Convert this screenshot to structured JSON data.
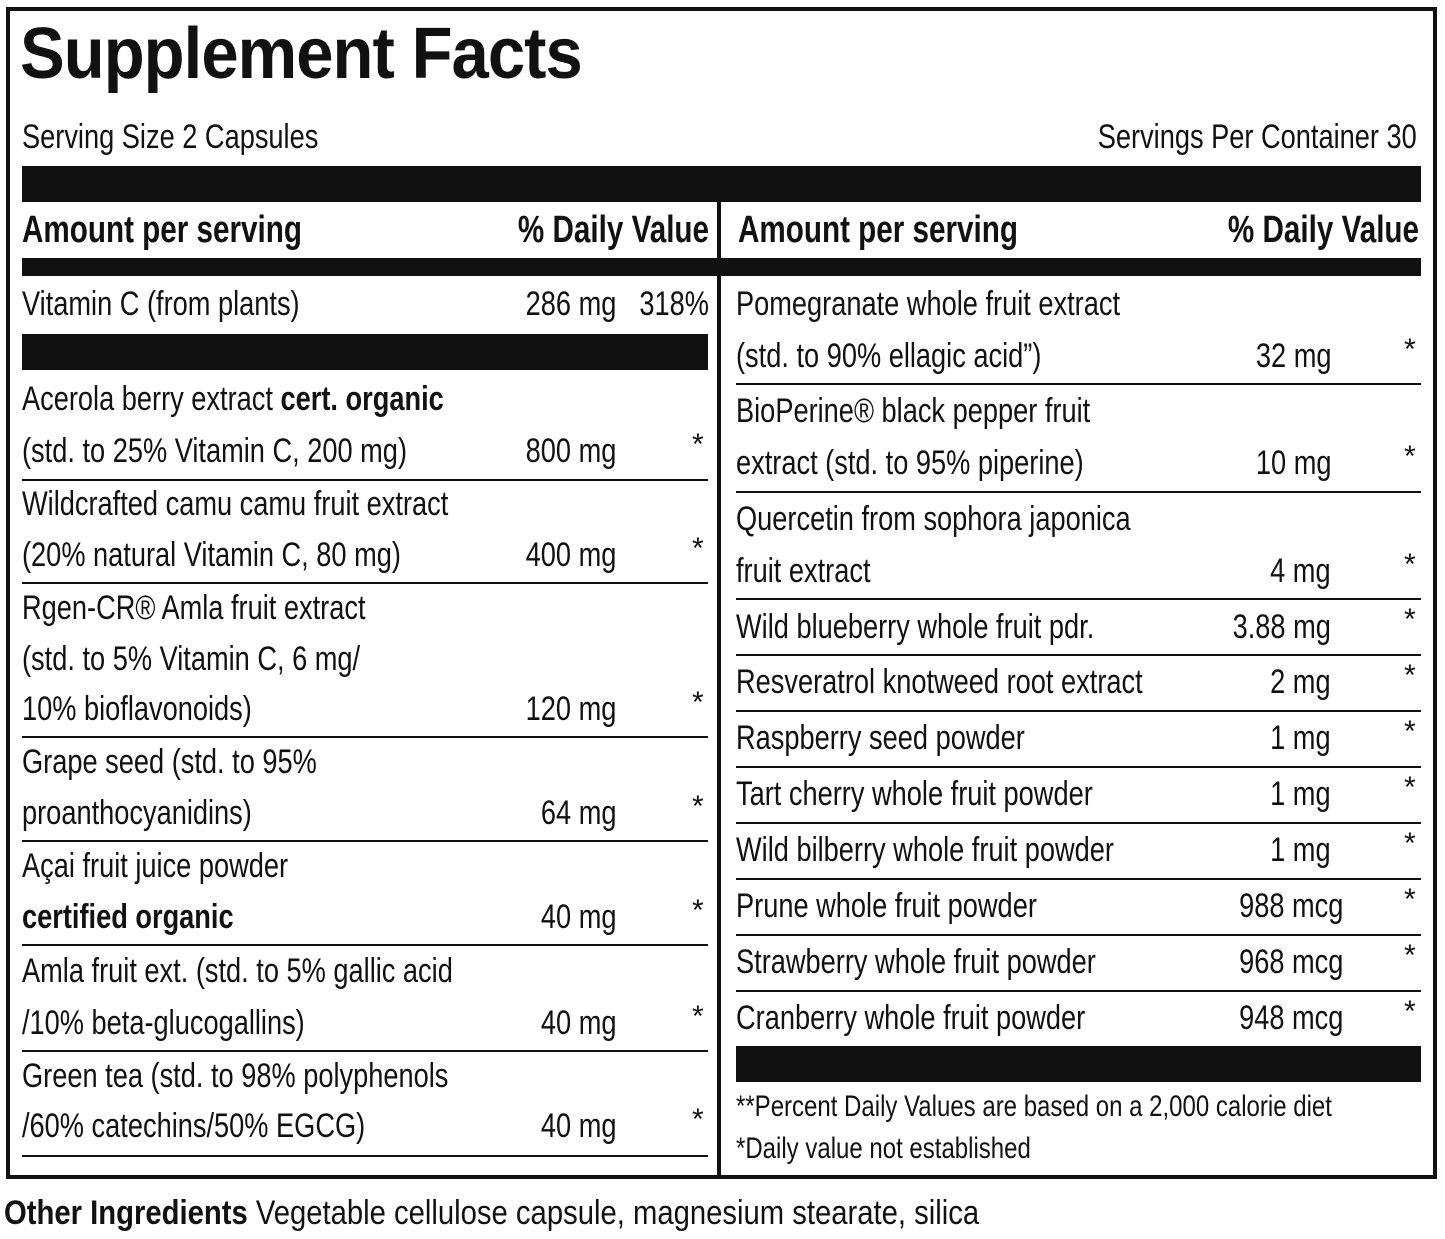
{
  "title": "Supplement Facts",
  "serving_size": "Serving Size 2 Capsules",
  "servings_per_container": "Servings Per Container 30",
  "header": {
    "amount": "Amount per serving",
    "dv": "% Daily Value"
  },
  "vitamin_c": {
    "name": "Vitamin C (from plants)",
    "amount": "286 mg",
    "dv": "318%"
  },
  "left_items": [
    {
      "line1": "Acerola berry extract ",
      "line1_bold": "cert. organic",
      "line2": "(std. to 25% Vitamin C, 200 mg)",
      "amount": "800 mg",
      "dv": "*"
    },
    {
      "line1": "Wildcrafted camu camu fruit extract",
      "line2": "(20% natural Vitamin C, 80 mg)",
      "amount": "400 mg",
      "dv": "*"
    },
    {
      "line1": "Rgen-CR® Amla fruit extract",
      "line2": "(std. to 5% Vitamin C, 6 mg/",
      "line3": "10% bioflavonoids)",
      "amount": "120 mg",
      "dv": "*"
    },
    {
      "line1": "Grape seed (std. to 95%",
      "line2": "proanthocyanidins)",
      "amount": "64 mg",
      "dv": "*"
    },
    {
      "line1": "Açai fruit juice powder",
      "line2_bold": "certified organic",
      "amount": "40 mg",
      "dv": "*"
    },
    {
      "line1": "Amla fruit ext. (std. to 5% gallic acid",
      "line2": "/10% beta-glucogallins)",
      "amount": "40 mg",
      "dv": "*"
    },
    {
      "line1": "Green tea (std. to 98% polyphenols",
      "line2": "/60% catechins/50% EGCG)",
      "amount": "40 mg",
      "dv": "*"
    }
  ],
  "right_items": [
    {
      "line1": "Pomegranate whole fruit extract",
      "line2": "(std. to 90% ellagic acid”)",
      "amount": "32 mg",
      "dv": "*"
    },
    {
      "line1": "BioPerine® black pepper fruit",
      "line2": "extract (std. to 95% piperine)",
      "amount": "10 mg",
      "dv": "*"
    },
    {
      "line1": "Quercetin from sophora japonica",
      "line2": "fruit extract",
      "amount": "4 mg",
      "dv": "*"
    },
    {
      "line1": "Wild blueberry whole fruit pdr.",
      "amount": "3.88 mg",
      "dv": "*"
    },
    {
      "line1": "Resveratrol knotweed root extract",
      "amount": "2 mg",
      "dv": "*"
    },
    {
      "line1": "Raspberry seed powder",
      "amount": "1 mg",
      "dv": "*"
    },
    {
      "line1": "Tart cherry whole fruit powder",
      "amount": "1 mg",
      "dv": "*"
    },
    {
      "line1": "Wild bilberry whole fruit powder",
      "amount": "1 mg",
      "dv": "*"
    },
    {
      "line1": "Prune whole fruit powder",
      "amount": "988 mcg",
      "dv": "*"
    },
    {
      "line1": "Strawberry whole fruit powder",
      "amount": "968 mcg",
      "dv": "*"
    },
    {
      "line1": "Cranberry whole fruit powder",
      "amount": "948 mcg",
      "dv": "*"
    }
  ],
  "footnotes": {
    "percent": "**Percent Daily Values are based on a 2,000 calorie diet",
    "not_established": "*Daily value not established"
  },
  "other_ingredients": {
    "label": "Other Ingredients",
    "text": " Vegetable cellulose capsule, magnesium stearate, silica"
  }
}
